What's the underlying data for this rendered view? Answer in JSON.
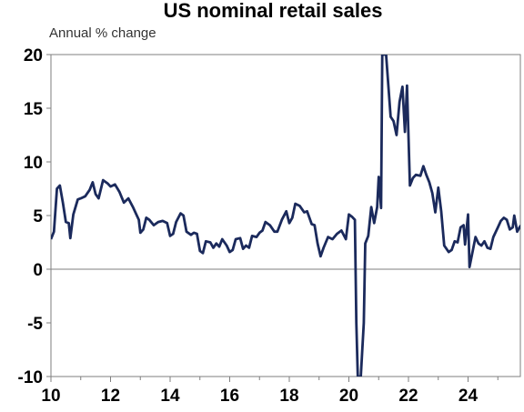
{
  "chart_data": {
    "type": "line",
    "title": "US nominal retail sales",
    "subtitle": "Annual % change",
    "xlabel": "",
    "ylabel": "",
    "xlim": [
      2010,
      2025.95
    ],
    "ylim": [
      -10,
      20
    ],
    "x_ticks": [
      2010,
      2012,
      2014,
      2016,
      2018,
      2020,
      2022,
      2024
    ],
    "x_tick_labels": [
      "10",
      "12",
      "14",
      "16",
      "18",
      "20",
      "22",
      "24"
    ],
    "y_ticks": [
      20,
      15,
      10,
      5,
      0,
      -5,
      -10
    ],
    "y_tick_labels": [
      "20",
      "15",
      "10",
      "5",
      "0",
      "-5",
      "-10"
    ],
    "zero_line": true,
    "grid": false,
    "line_color": "#1b2a5c",
    "series": [
      {
        "name": "",
        "points": [
          [
            2010.0,
            2.8
          ],
          [
            2010.1,
            3.5
          ],
          [
            2010.2,
            7.5
          ],
          [
            2010.3,
            7.8
          ],
          [
            2010.4,
            6.2
          ],
          [
            2010.5,
            4.4
          ],
          [
            2010.6,
            4.3
          ],
          [
            2010.65,
            2.9
          ],
          [
            2010.75,
            5.1
          ],
          [
            2010.9,
            6.5
          ],
          [
            2011.0,
            6.6
          ],
          [
            2011.15,
            6.8
          ],
          [
            2011.3,
            7.4
          ],
          [
            2011.4,
            8.1
          ],
          [
            2011.5,
            7.0
          ],
          [
            2011.6,
            6.6
          ],
          [
            2011.75,
            8.3
          ],
          [
            2011.9,
            8.0
          ],
          [
            2012.0,
            7.7
          ],
          [
            2012.15,
            7.9
          ],
          [
            2012.3,
            7.2
          ],
          [
            2012.45,
            6.2
          ],
          [
            2012.6,
            6.6
          ],
          [
            2012.75,
            5.8
          ],
          [
            2012.85,
            5.2
          ],
          [
            2012.95,
            4.6
          ],
          [
            2013.0,
            3.4
          ],
          [
            2013.1,
            3.7
          ],
          [
            2013.2,
            4.8
          ],
          [
            2013.3,
            4.6
          ],
          [
            2013.45,
            4.1
          ],
          [
            2013.6,
            4.4
          ],
          [
            2013.75,
            4.5
          ],
          [
            2013.9,
            4.3
          ],
          [
            2014.0,
            3.1
          ],
          [
            2014.1,
            3.3
          ],
          [
            2014.2,
            4.4
          ],
          [
            2014.35,
            5.2
          ],
          [
            2014.45,
            5.0
          ],
          [
            2014.55,
            3.5
          ],
          [
            2014.7,
            3.2
          ],
          [
            2014.8,
            3.4
          ],
          [
            2014.9,
            3.3
          ],
          [
            2015.0,
            1.7
          ],
          [
            2015.1,
            1.5
          ],
          [
            2015.2,
            2.6
          ],
          [
            2015.35,
            2.5
          ],
          [
            2015.45,
            2.0
          ],
          [
            2015.55,
            2.4
          ],
          [
            2015.65,
            2.1
          ],
          [
            2015.75,
            2.8
          ],
          [
            2015.9,
            2.2
          ],
          [
            2016.0,
            1.6
          ],
          [
            2016.1,
            1.8
          ],
          [
            2016.2,
            2.8
          ],
          [
            2016.35,
            2.9
          ],
          [
            2016.45,
            1.9
          ],
          [
            2016.55,
            2.2
          ],
          [
            2016.65,
            2.0
          ],
          [
            2016.75,
            3.1
          ],
          [
            2016.9,
            3.0
          ],
          [
            2017.0,
            3.4
          ],
          [
            2017.1,
            3.6
          ],
          [
            2017.2,
            4.4
          ],
          [
            2017.35,
            4.1
          ],
          [
            2017.5,
            3.5
          ],
          [
            2017.6,
            3.5
          ],
          [
            2017.75,
            4.6
          ],
          [
            2017.9,
            5.4
          ],
          [
            2018.0,
            4.3
          ],
          [
            2018.1,
            4.8
          ],
          [
            2018.2,
            6.1
          ],
          [
            2018.35,
            5.9
          ],
          [
            2018.5,
            5.3
          ],
          [
            2018.6,
            5.4
          ],
          [
            2018.75,
            4.2
          ],
          [
            2018.85,
            4.1
          ],
          [
            2018.95,
            2.4
          ],
          [
            2019.05,
            1.2
          ],
          [
            2019.15,
            2.0
          ],
          [
            2019.3,
            3.0
          ],
          [
            2019.45,
            2.8
          ],
          [
            2019.6,
            3.3
          ],
          [
            2019.75,
            3.6
          ],
          [
            2019.9,
            2.8
          ],
          [
            2020.0,
            5.1
          ],
          [
            2020.1,
            4.9
          ],
          [
            2020.2,
            4.6
          ],
          [
            2020.25,
            -5.0
          ],
          [
            2020.3,
            -10.0
          ],
          [
            2020.4,
            -10.0
          ],
          [
            2020.5,
            -5.0
          ],
          [
            2020.55,
            2.4
          ],
          [
            2020.65,
            3.1
          ],
          [
            2020.75,
            5.8
          ],
          [
            2020.85,
            4.3
          ],
          [
            2020.95,
            5.8
          ],
          [
            2021.0,
            8.6
          ],
          [
            2021.08,
            5.7
          ],
          [
            2021.12,
            20.0
          ],
          [
            2021.25,
            20.0
          ],
          [
            2021.4,
            14.2
          ],
          [
            2021.5,
            13.8
          ],
          [
            2021.6,
            12.5
          ],
          [
            2021.7,
            15.6
          ],
          [
            2021.8,
            17.0
          ],
          [
            2021.88,
            12.8
          ],
          [
            2021.95,
            17.1
          ],
          [
            2022.05,
            7.8
          ],
          [
            2022.15,
            8.5
          ],
          [
            2022.25,
            8.8
          ],
          [
            2022.4,
            8.7
          ],
          [
            2022.5,
            9.6
          ],
          [
            2022.6,
            8.8
          ],
          [
            2022.7,
            8.1
          ],
          [
            2022.8,
            7.1
          ],
          [
            2022.9,
            5.3
          ],
          [
            2023.0,
            7.6
          ],
          [
            2023.1,
            5.4
          ],
          [
            2023.2,
            2.2
          ],
          [
            2023.35,
            1.6
          ],
          [
            2023.45,
            1.8
          ],
          [
            2023.55,
            2.6
          ],
          [
            2023.65,
            2.5
          ],
          [
            2023.75,
            3.9
          ],
          [
            2023.85,
            4.1
          ],
          [
            2023.9,
            2.3
          ],
          [
            2024.0,
            5.1
          ],
          [
            2024.05,
            0.2
          ],
          [
            2024.15,
            1.6
          ],
          [
            2024.25,
            3.0
          ],
          [
            2024.35,
            2.4
          ],
          [
            2024.45,
            2.2
          ],
          [
            2024.55,
            2.6
          ],
          [
            2024.65,
            2.0
          ],
          [
            2024.75,
            1.9
          ],
          [
            2024.85,
            3.0
          ],
          [
            2025.0,
            3.9
          ],
          [
            2025.1,
            4.5
          ],
          [
            2025.2,
            4.8
          ],
          [
            2025.3,
            4.6
          ],
          [
            2025.4,
            3.7
          ],
          [
            2025.5,
            3.9
          ],
          [
            2025.55,
            5.0
          ],
          [
            2025.65,
            3.5
          ],
          [
            2025.75,
            4.0
          ],
          [
            2025.85,
            4.2
          ],
          [
            2025.95,
            4.9
          ]
        ]
      }
    ]
  }
}
